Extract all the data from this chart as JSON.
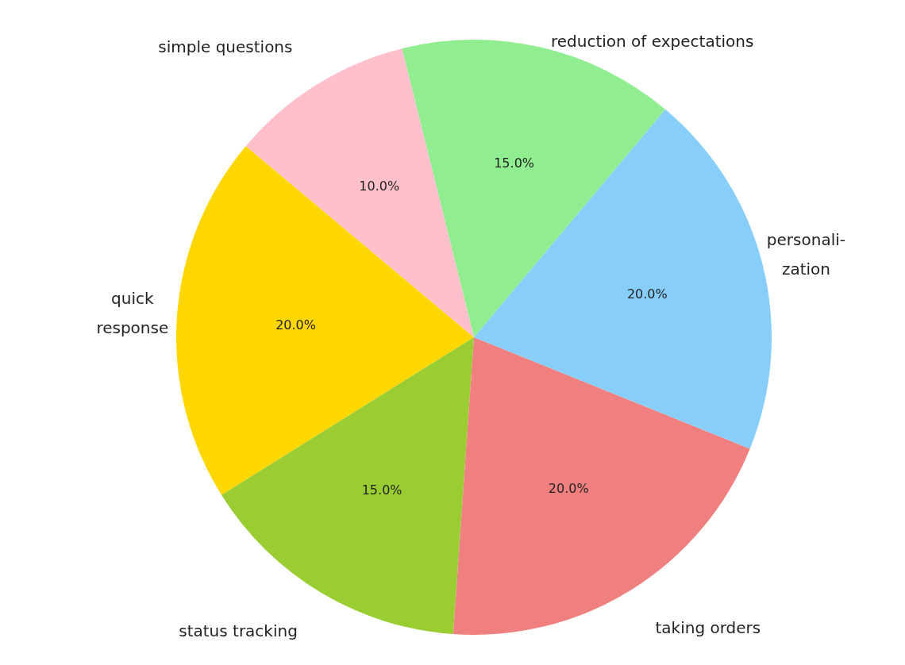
{
  "chart_data": {
    "type": "pie",
    "categories": [
      "quick\nresponse",
      "status tracking",
      "taking orders",
      "personali-\nzation",
      "reduction of expectations",
      "simple questions"
    ],
    "values": [
      20,
      15,
      20,
      20,
      15,
      10
    ],
    "colors": [
      "#ffd700",
      "#9acd32",
      "#f08080",
      "#87cefa",
      "#90ee90",
      "#ffc0cb"
    ],
    "value_labels": [
      "20.0%",
      "15.0%",
      "20.0%",
      "20.0%",
      "15.0%",
      "10.0%"
    ]
  }
}
